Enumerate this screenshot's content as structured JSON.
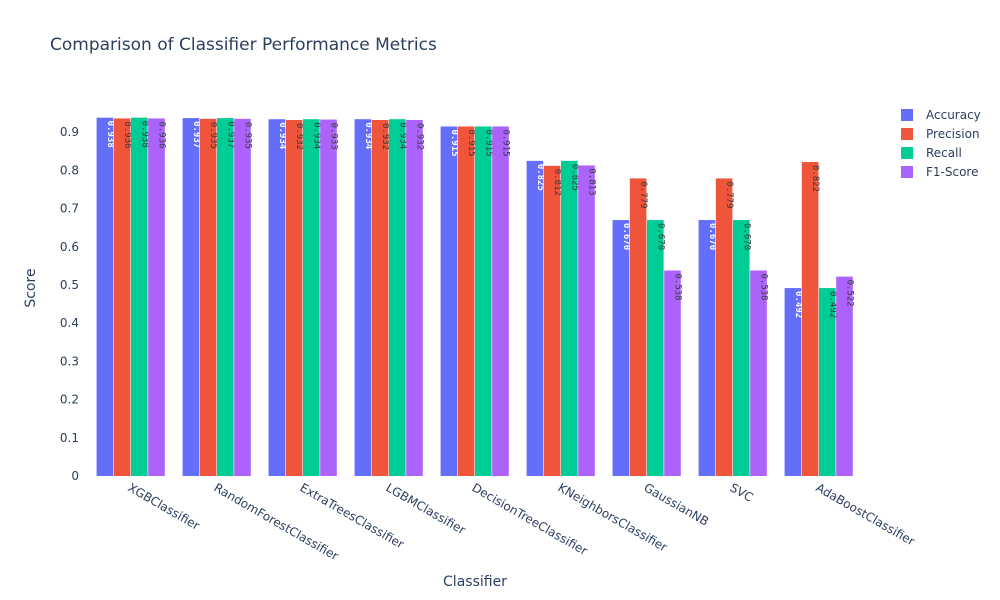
{
  "chart_data": {
    "type": "bar",
    "title": "Comparison of Classifier Performance Metrics",
    "xlabel": "Classifier",
    "ylabel": "Score",
    "ylim": [
      0,
      1.0
    ],
    "yticks": [
      0,
      0.1,
      0.2,
      0.3,
      0.4,
      0.5,
      0.6,
      0.7,
      0.8,
      0.9
    ],
    "ytick_labels": [
      "0",
      "0.1",
      "0.2",
      "0.3",
      "0.4",
      "0.5",
      "0.6",
      "0.7",
      "0.8",
      "0.9"
    ],
    "grid": false,
    "legend_position": "top-right",
    "categories": [
      "XGBClassifier",
      "RandomForestClassifier",
      "ExtraTreesClassifier",
      "LGBMClassifier",
      "DecisionTreeClassifier",
      "KNeighborsClassifier",
      "GaussianNB",
      "SVC",
      "AdaBoostClassifier"
    ],
    "series": [
      {
        "name": "Accuracy",
        "color": "#636efa",
        "label_color": "#ffffff",
        "values": [
          0.938,
          0.937,
          0.934,
          0.934,
          0.915,
          0.825,
          0.67,
          0.67,
          0.492
        ],
        "labels": [
          "0.938",
          "0.937",
          "0.934",
          "0.934",
          "0.915",
          "0.825",
          "0.670",
          "0.670",
          "0.492"
        ]
      },
      {
        "name": "Precision",
        "color": "#ef553b",
        "label_color": "#3a3a3a",
        "values": [
          0.936,
          0.935,
          0.932,
          0.932,
          0.915,
          0.812,
          0.779,
          0.779,
          0.822
        ],
        "labels": [
          "0.936",
          "0.935",
          "0.932",
          "0.932",
          "0.915",
          "0.812",
          "0.779",
          "0.779",
          "0.822"
        ]
      },
      {
        "name": "Recall",
        "color": "#00cc96",
        "label_color": "#3a3a3a",
        "values": [
          0.938,
          0.937,
          0.934,
          0.934,
          0.915,
          0.825,
          0.67,
          0.67,
          0.492
        ],
        "labels": [
          "0.938",
          "0.937",
          "0.934",
          "0.934",
          "0.915",
          "0.825",
          "0.670",
          "0.670",
          "0.492"
        ]
      },
      {
        "name": "F1-Score",
        "color": "#ab63fa",
        "label_color": "#3a3a3a",
        "values": [
          0.936,
          0.935,
          0.933,
          0.932,
          0.915,
          0.813,
          0.538,
          0.538,
          0.522
        ],
        "labels": [
          "0.936",
          "0.935",
          "0.933",
          "0.932",
          "0.915",
          "0.813",
          "0.538",
          "0.538",
          "0.522"
        ]
      }
    ]
  }
}
